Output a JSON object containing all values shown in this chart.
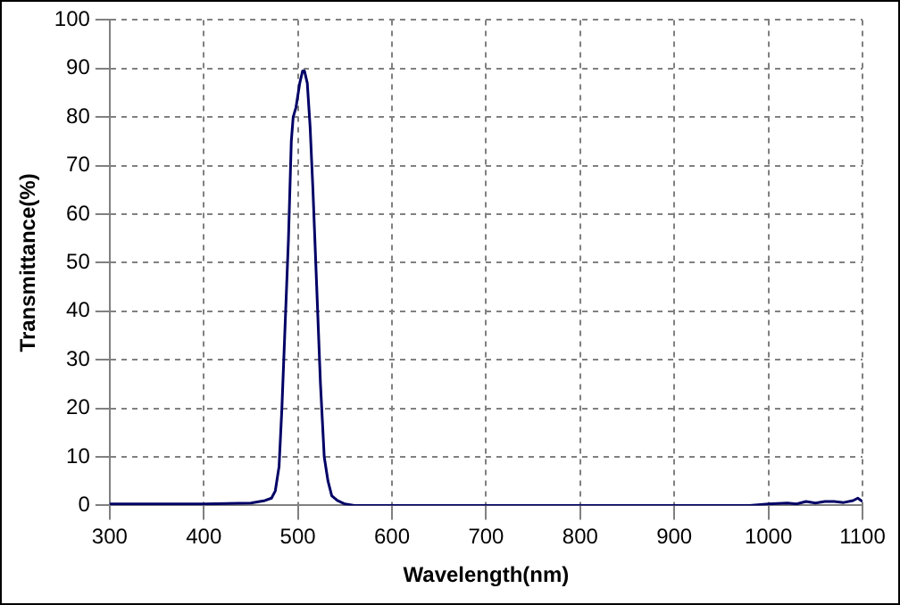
{
  "chart_data": {
    "type": "line",
    "xlabel": "Wavelength(nm)",
    "ylabel": "Transmittance(%)",
    "x": [
      300,
      400,
      450,
      465,
      472,
      476,
      480,
      483,
      486,
      490,
      493,
      495,
      498,
      502,
      505,
      507,
      510,
      513,
      516,
      520,
      524,
      528,
      532,
      536,
      542,
      550,
      560,
      980,
      1000,
      1020,
      1030,
      1040,
      1050,
      1060,
      1070,
      1080,
      1090,
      1095,
      1100
    ],
    "series": [
      {
        "color": "#000066",
        "values": [
          0.3,
          0.3,
          0.5,
          1,
          1.5,
          3,
          8,
          20,
          35,
          55,
          75,
          80,
          82,
          87,
          89.5,
          89.5,
          87,
          78,
          65,
          45,
          25,
          10,
          5,
          2,
          1,
          0.3,
          0,
          0,
          0.3,
          0.5,
          0.3,
          0.8,
          0.5,
          0.8,
          0.8,
          0.6,
          1,
          1.5,
          0.8
        ]
      }
    ],
    "xlim": [
      300,
      1100
    ],
    "xticks": [
      300,
      400,
      500,
      600,
      700,
      800,
      900,
      1000,
      1100
    ],
    "ylim": [
      0,
      100
    ],
    "yticks": [
      0,
      10,
      20,
      30,
      40,
      50,
      60,
      70,
      80,
      90,
      100
    ],
    "grid": true,
    "legend": false,
    "marker": "none",
    "line_style": "solid"
  }
}
